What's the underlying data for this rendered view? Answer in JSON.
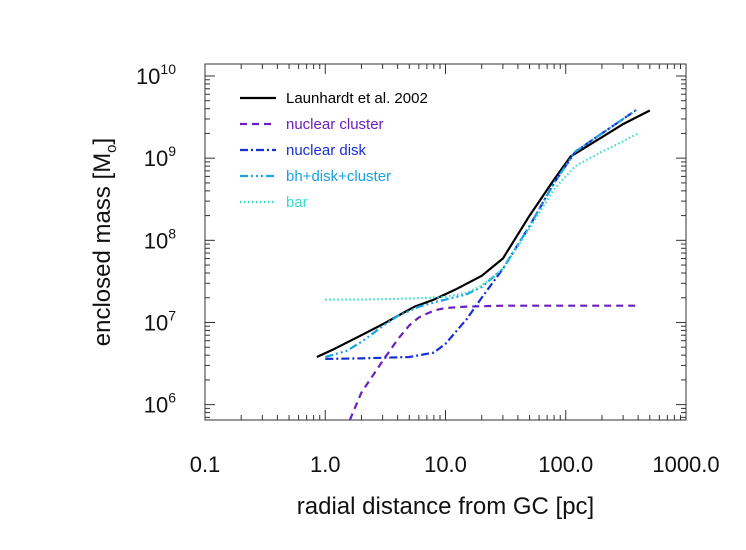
{
  "chart_data": {
    "type": "line",
    "xscale": "log",
    "yscale": "log",
    "xlabel": "radial distance from GC [pc]",
    "ylabel": {
      "main": "enclosed mass [M",
      "sub": "o",
      "close": "]"
    },
    "xlim": [
      0.1,
      1000.0
    ],
    "ylim": [
      650000,
      14000000000
    ],
    "x_ticks": [
      0.1,
      1.0,
      10.0,
      100.0,
      1000.0
    ],
    "x_tick_labels": [
      "0.1",
      "1.0",
      "10.0",
      "100.0",
      "1000.0"
    ],
    "y_ticks": [
      1000000,
      10000000,
      100000000,
      1000000000,
      10000000000
    ],
    "y_tick_labels": [
      {
        "base": "10",
        "exp": "6"
      },
      {
        "base": "10",
        "exp": "7"
      },
      {
        "base": "10",
        "exp": "8"
      },
      {
        "base": "10",
        "exp": "9"
      },
      {
        "base": "10",
        "exp": "10"
      }
    ],
    "legend_position": "top-left",
    "series": [
      {
        "name": "Launhardt et al. 2002",
        "color": "#000000",
        "dash": "solid",
        "x": [
          0.85,
          1.2,
          2,
          3,
          4,
          5.5,
          8,
          12,
          20,
          30,
          50,
          80,
          110,
          200,
          300,
          500
        ],
        "y": [
          3800000,
          4800000,
          7000000,
          9500000,
          12000000,
          15500000,
          19000000,
          25000000,
          37000000,
          60000000,
          200000000,
          550000000,
          1050000000,
          1800000000,
          2600000000,
          3800000000
        ]
      },
      {
        "name": "nuclear cluster",
        "color": "#6a1fc0",
        "dash": "dashed",
        "x": [
          1.6,
          2,
          3,
          4,
          5,
          6,
          8,
          10,
          15,
          30,
          100,
          400
        ],
        "y": [
          650000,
          1400000,
          3400000,
          6200000,
          9200000,
          11500000,
          14000000,
          15000000,
          15600000,
          16000000,
          16000000,
          16000000
        ]
      },
      {
        "name": "nuclear disk",
        "color": "#1a2fd0",
        "dash": "dashdot",
        "x": [
          1.0,
          2,
          5,
          8,
          10,
          15,
          20,
          30,
          50,
          80,
          120,
          200,
          300,
          400
        ],
        "y": [
          3600000,
          3650000,
          3800000,
          4300000,
          5500000,
          11000000,
          20000000,
          45000000,
          150000000,
          500000000,
          1200000000,
          2000000000,
          3000000000,
          4000000000
        ]
      },
      {
        "name": "bh+disk+cluster",
        "color": "#18a2e0",
        "dash": "dashdotdotdot",
        "x": [
          1.0,
          1.5,
          2,
          3,
          4,
          6,
          8,
          10,
          15,
          20,
          30,
          50,
          80,
          120,
          200,
          300,
          400
        ],
        "y": [
          3800000,
          4500000,
          5800000,
          9000000,
          12000000,
          15500000,
          17500000,
          19000000,
          22000000,
          27000000,
          45000000,
          150000000,
          500000000,
          1200000000,
          2000000000,
          3000000000,
          4000000000
        ]
      },
      {
        "name": "bar",
        "color": "#33ddcc",
        "dash": "dotted",
        "x": [
          1.0,
          2,
          5,
          10,
          15,
          20,
          30,
          50,
          80,
          120,
          200,
          300,
          400
        ],
        "y": [
          19000000,
          19000000,
          19500000,
          20500000,
          23000000,
          28000000,
          45000000,
          140000000,
          420000000,
          800000000,
          1200000000,
          1600000000,
          2000000000
        ]
      }
    ]
  }
}
